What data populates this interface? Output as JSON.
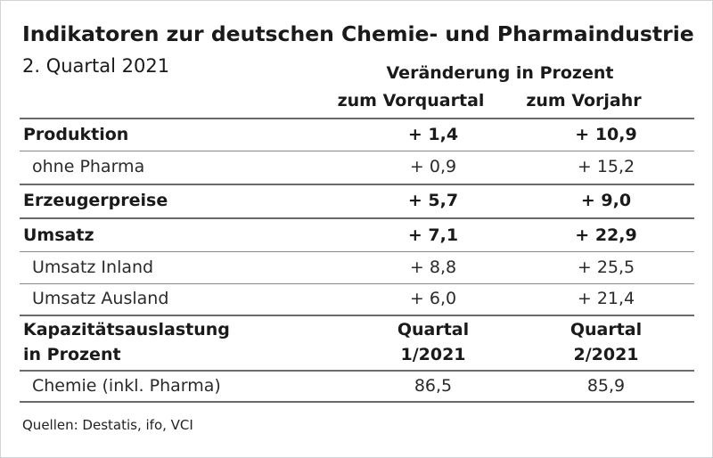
{
  "title": "Indikatoren zur deutschen Chemie- und Pharmaindustrie",
  "subtitle": "2. Quartal 2021",
  "header": {
    "change": "Veränderung in Prozent",
    "col1": "zum Vorquartal",
    "col2": "zum Vorjahr"
  },
  "rows": [
    {
      "label": "Produktion",
      "v1": "+ 1,4",
      "v2": "+ 10,9"
    },
    {
      "label": "ohne Pharma",
      "v1": "+ 0,9",
      "v2": "+ 15,2"
    },
    {
      "label": "Erzeugerpreise",
      "v1": "+ 5,7",
      "v2": "+ 9,0"
    },
    {
      "label": "Umsatz",
      "v1": "+ 7,1",
      "v2": "+ 22,9"
    },
    {
      "label": "Umsatz Inland",
      "v1": "+ 8,8",
      "v2": "+ 25,5"
    },
    {
      "label": "Umsatz Ausland",
      "v1": "+ 6,0",
      "v2": "+ 21,4"
    }
  ],
  "capacity": {
    "label_line1": "Kapazitätsauslastung",
    "label_line2": "in Prozent",
    "col1_line1": "Quartal",
    "col1_line2": "1/2021",
    "col2_line1": "Quartal",
    "col2_line2": "2/2021",
    "row": {
      "label": "Chemie (inkl. Pharma)",
      "v1": "86,5",
      "v2": "85,9"
    }
  },
  "source": "Quellen: Destatis, ifo, VCI"
}
